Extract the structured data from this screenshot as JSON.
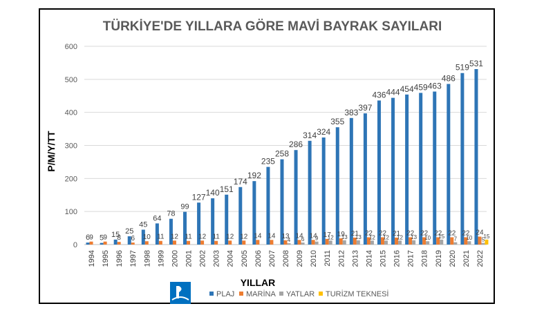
{
  "chart_data": {
    "type": "bar",
    "title": "TÜRKİYE'DE YILLARA GÖRE MAVİ BAYRAK SAYILARI",
    "xlabel": "YILLAR",
    "ylabel": "P/M/Y/TT",
    "ylim": [
      0,
      600
    ],
    "yticks": [
      "0",
      "100",
      "200",
      "300",
      "400",
      "500",
      "600"
    ],
    "grid": true,
    "legend_position": "bottom",
    "categories": [
      "1994",
      "1995",
      "1996",
      "1997",
      "1998",
      "1999",
      "2000",
      "2001",
      "2002",
      "2003",
      "2004",
      "2005",
      "2006",
      "2007",
      "2008",
      "2009",
      "2010",
      "2011",
      "2012",
      "2013",
      "2014",
      "2015",
      "2016",
      "2017",
      "2018",
      "2019",
      "2020",
      "2021",
      "2022"
    ],
    "series": [
      {
        "name": "PLAJ",
        "color": "#2e75b6",
        "values": [
          6,
          5,
          15,
          25,
          45,
          64,
          78,
          99,
          127,
          140,
          151,
          174,
          192,
          235,
          258,
          286,
          314,
          324,
          355,
          383,
          397,
          436,
          444,
          454,
          459,
          463,
          486,
          519,
          531
        ]
      },
      {
        "name": "MARİNA",
        "color": "#ed7d31",
        "values": [
          9,
          9,
          8,
          6,
          10,
          11,
          12,
          11,
          12,
          11,
          12,
          12,
          14,
          14,
          13,
          14,
          14,
          17,
          19,
          21,
          22,
          22,
          21,
          22,
          22,
          22,
          22,
          22,
          24
        ]
      },
      {
        "name": "YATLAR",
        "color": "#a5a5a5",
        "values": [
          null,
          null,
          null,
          null,
          null,
          null,
          null,
          null,
          null,
          null,
          null,
          null,
          null,
          null,
          4,
          6,
          9,
          12,
          13,
          13,
          12,
          12,
          12,
          13,
          10,
          15,
          7,
          10,
          5
        ]
      },
      {
        "name": "TURİZM TEKNESİ",
        "color": "#ffc000",
        "values": [
          null,
          null,
          null,
          null,
          null,
          null,
          null,
          null,
          null,
          null,
          null,
          null,
          null,
          null,
          null,
          null,
          null,
          null,
          null,
          null,
          null,
          null,
          null,
          null,
          null,
          null,
          null,
          null,
          15
        ]
      }
    ]
  },
  "logo": {
    "name": "blue-flag-logo",
    "color": "#0070c0"
  }
}
